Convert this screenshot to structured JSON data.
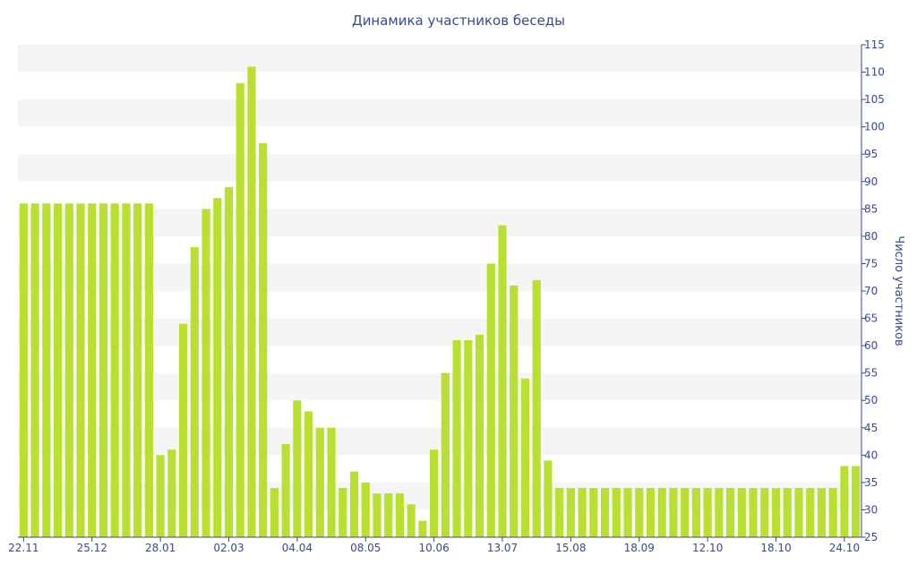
{
  "chart_data": {
    "type": "bar",
    "title": "Динамика участников беседы",
    "xlabel": "",
    "ylabel": "Число участников",
    "ylim": [
      25,
      115
    ],
    "yticks": [
      25,
      30,
      35,
      40,
      45,
      50,
      55,
      60,
      65,
      70,
      75,
      80,
      85,
      90,
      95,
      100,
      105,
      110,
      115
    ],
    "y_axis_position": "right",
    "grid": "alternating horizontal bands",
    "legend": "none",
    "bar_color": "#b9e030",
    "band_color": "#f5f5f5",
    "text_color": "#3a4a8a",
    "x_tick_labels": [
      {
        "index": 0,
        "label": "22.11"
      },
      {
        "index": 6,
        "label": "25.12"
      },
      {
        "index": 12,
        "label": "28.01"
      },
      {
        "index": 18,
        "label": "02.03"
      },
      {
        "index": 24,
        "label": "04.04"
      },
      {
        "index": 30,
        "label": "08.05"
      },
      {
        "index": 36,
        "label": "10.06"
      },
      {
        "index": 42,
        "label": "13.07"
      },
      {
        "index": 48,
        "label": "15.08"
      },
      {
        "index": 54,
        "label": "18.09"
      },
      {
        "index": 60,
        "label": "12.10"
      },
      {
        "index": 66,
        "label": "18.10"
      },
      {
        "index": 72,
        "label": "24.10"
      }
    ],
    "values": [
      86,
      86,
      86,
      86,
      86,
      86,
      86,
      86,
      86,
      86,
      86,
      86,
      40,
      41,
      64,
      78,
      85,
      87,
      89,
      108,
      111,
      97,
      34,
      42,
      50,
      48,
      45,
      45,
      34,
      37,
      35,
      33,
      33,
      33,
      31,
      28,
      41,
      55,
      61,
      61,
      62,
      75,
      82,
      71,
      54,
      72,
      39,
      34,
      34,
      34,
      34,
      34,
      34,
      34,
      34,
      34,
      34,
      34,
      34,
      34,
      34,
      34,
      34,
      34,
      34,
      34,
      34,
      34,
      34,
      34,
      34,
      34,
      38,
      38
    ]
  }
}
